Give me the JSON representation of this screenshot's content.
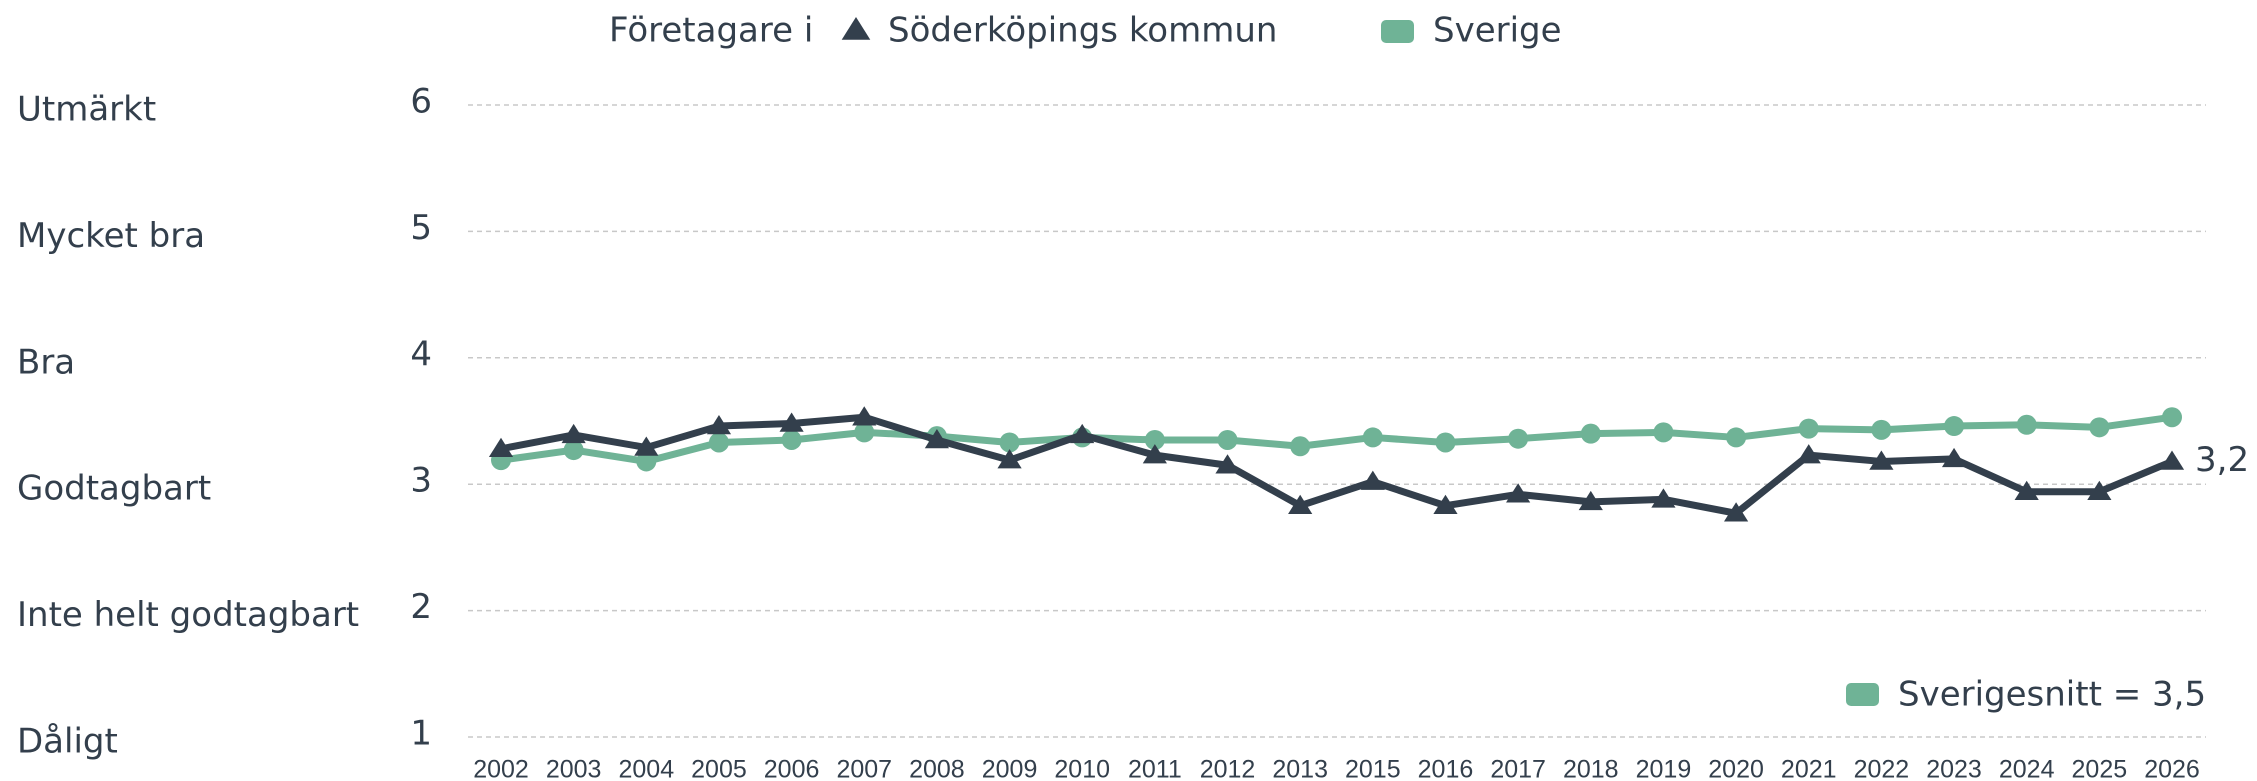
{
  "chart_data": {
    "type": "line",
    "legend_title": "Företagare i",
    "categories": [
      "2002",
      "2003",
      "2004",
      "2005",
      "2006",
      "2007",
      "2008",
      "2009",
      "2010",
      "2011",
      "2012",
      "2013",
      "2015",
      "2016",
      "2017",
      "2018",
      "2019",
      "2020",
      "2021",
      "2022",
      "2023",
      "2024",
      "2025",
      "2026"
    ],
    "series": [
      {
        "name": "Söderköpings kommun",
        "color": "#333f4c",
        "marker": "triangle",
        "values": [
          3.28,
          3.39,
          3.29,
          3.46,
          3.48,
          3.53,
          3.35,
          3.19,
          3.39,
          3.23,
          3.15,
          2.83,
          3.02,
          2.83,
          2.92,
          2.86,
          2.88,
          2.77,
          3.23,
          3.18,
          3.2,
          2.94,
          2.94,
          3.18
        ],
        "value_labels": [
          null,
          null,
          null,
          null,
          null,
          null,
          null,
          null,
          null,
          null,
          null,
          null,
          null,
          null,
          null,
          null,
          null,
          null,
          null,
          null,
          null,
          null,
          null,
          "3,2"
        ]
      },
      {
        "name": "Sverige",
        "color": "#6fb396",
        "marker": "circle",
        "values": [
          3.19,
          3.27,
          3.18,
          3.33,
          3.35,
          3.41,
          3.38,
          3.33,
          3.37,
          3.35,
          3.35,
          3.3,
          3.37,
          3.33,
          3.36,
          3.4,
          3.41,
          3.37,
          3.44,
          3.43,
          3.46,
          3.47,
          3.45,
          3.53
        ]
      }
    ],
    "ylim": [
      1,
      6
    ],
    "yticks": [
      1,
      2,
      3,
      4,
      5,
      6
    ],
    "ytick_names": [
      "Dåligt",
      "Inte helt godtagbart",
      "Godtagbart",
      "Bra",
      "Mycket bra",
      "Utmärkt"
    ],
    "grid": true,
    "annotation": {
      "text": "Sverigesnitt = 3,5",
      "color": "#6fb396"
    }
  }
}
